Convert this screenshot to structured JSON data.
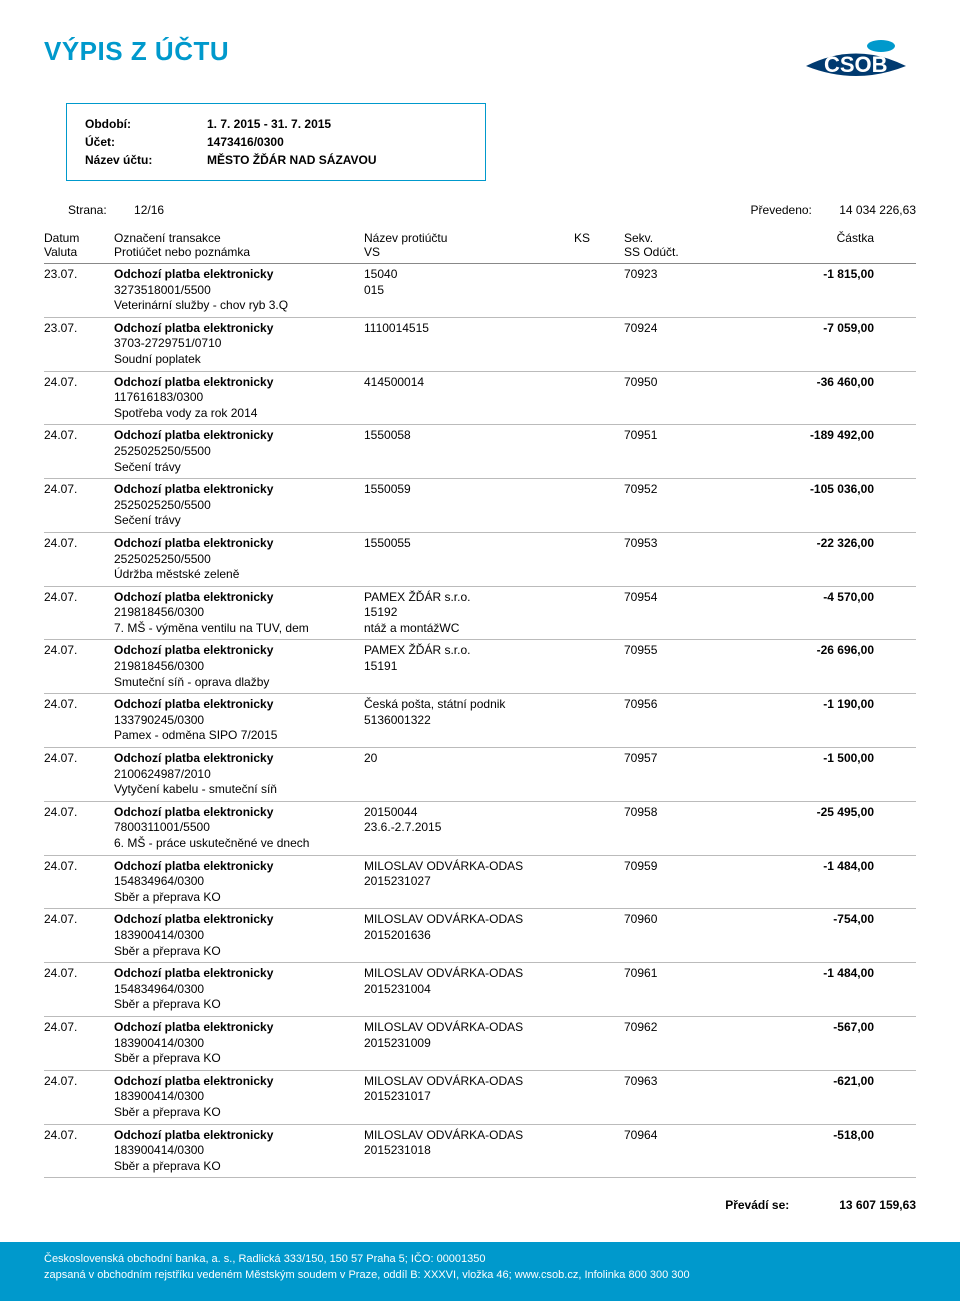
{
  "title": "VÝPIS Z ÚČTU",
  "account": {
    "period_label": "Období:",
    "period_value": "1. 7. 2015 - 31. 7. 2015",
    "acct_label": "Účet:",
    "acct_value": "1473416/0300",
    "name_label": "Název účtu:",
    "name_value": "MĚSTO ŽĎÁR NAD SÁZAVOU"
  },
  "topline": {
    "page_label": "Strana:",
    "page_value": "12/16",
    "carry_label": "Převedeno:",
    "carry_value": "14 034 226,63"
  },
  "cols": {
    "c1a": "Datum",
    "c1b": "Valuta",
    "c2a": "Označení transakce",
    "c2b": "Protiúčet nebo poznámka",
    "c3a": "Název protiúčtu",
    "c3b": "VS",
    "c4a": "",
    "c4b": "KS",
    "c5a": "Sekv.",
    "c5b": "SS  Odúčt.",
    "c6a": "Částka",
    "c6b": ""
  },
  "transactions": [
    {
      "date": "23.07.",
      "type": "Odchozí platba elektronicky",
      "acct": "3273518001/5500",
      "note": "Veterinární služby - chov ryb 3.Q",
      "name": "",
      "vs": "15040",
      "ks": "015",
      "seq": "70923",
      "amt": "-1 815,00"
    },
    {
      "date": "23.07.",
      "type": "Odchozí platba elektronicky",
      "acct": "3703-2729751/0710",
      "note": "Soudní poplatek",
      "name": "",
      "vs": "1110014515",
      "ks": "",
      "seq": "70924",
      "amt": "-7 059,00"
    },
    {
      "date": "24.07.",
      "type": "Odchozí platba elektronicky",
      "acct": "117616183/0300",
      "note": "Spotřeba vody za rok 2014",
      "name": "",
      "vs": "414500014",
      "ks": "",
      "seq": "70950",
      "amt": "-36 460,00"
    },
    {
      "date": "24.07.",
      "type": "Odchozí platba elektronicky",
      "acct": "2525025250/5500",
      "note": "Sečení trávy",
      "name": "",
      "vs": "1550058",
      "ks": "",
      "seq": "70951",
      "amt": "-189 492,00"
    },
    {
      "date": "24.07.",
      "type": "Odchozí platba elektronicky",
      "acct": "2525025250/5500",
      "note": "Sečení trávy",
      "name": "",
      "vs": "1550059",
      "ks": "",
      "seq": "70952",
      "amt": "-105 036,00"
    },
    {
      "date": "24.07.",
      "type": "Odchozí platba elektronicky",
      "acct": "2525025250/5500",
      "note": "Údržba městské zeleně",
      "name": "",
      "vs": "1550055",
      "ks": "",
      "seq": "70953",
      "amt": "-22 326,00"
    },
    {
      "date": "24.07.",
      "type": "Odchozí platba elektronicky",
      "acct": "219818456/0300",
      "note": "7. MŠ - výměna ventilu na TUV, dem",
      "name": "PAMEX ŽĎÁR s.r.o.",
      "vs": "15192",
      "ks": "ntáž a montážWC",
      "seq": "70954",
      "amt": "-4 570,00"
    },
    {
      "date": "24.07.",
      "type": "Odchozí platba elektronicky",
      "acct": "219818456/0300",
      "note": "Smuteční síň - oprava dlažby",
      "name": "PAMEX ŽĎÁR s.r.o.",
      "vs": "15191",
      "ks": "",
      "seq": "70955",
      "amt": "-26 696,00"
    },
    {
      "date": "24.07.",
      "type": "Odchozí platba elektronicky",
      "acct": "133790245/0300",
      "note": "Pamex - odměna SIPO 7/2015",
      "name": "Česká pošta, státní podnik",
      "vs": "5136001322",
      "ks": "",
      "seq": "70956",
      "amt": "-1 190,00"
    },
    {
      "date": "24.07.",
      "type": "Odchozí platba elektronicky",
      "acct": "2100624987/2010",
      "note": "Vytyčení kabelu - smuteční síň",
      "name": "",
      "vs": "20",
      "ks": "",
      "seq": "70957",
      "amt": "-1 500,00"
    },
    {
      "date": "24.07.",
      "type": "Odchozí platba elektronicky",
      "acct": "7800311001/5500",
      "note": "6. MŠ - práce uskutečněné ve dnech",
      "name": "",
      "vs": "20150044",
      "ks": "23.6.-2.7.2015",
      "seq": "70958",
      "amt": "-25 495,00"
    },
    {
      "date": "24.07.",
      "type": "Odchozí platba elektronicky",
      "acct": "154834964/0300",
      "note": "Sběr a přeprava KO",
      "name": "MILOSLAV ODVÁRKA-ODAS",
      "vs": "2015231027",
      "ks": "",
      "seq": "70959",
      "amt": "-1 484,00"
    },
    {
      "date": "24.07.",
      "type": "Odchozí platba elektronicky",
      "acct": "183900414/0300",
      "note": "Sběr a přeprava KO",
      "name": "MILOSLAV ODVÁRKA-ODAS",
      "vs": "2015201636",
      "ks": "",
      "seq": "70960",
      "amt": "-754,00"
    },
    {
      "date": "24.07.",
      "type": "Odchozí platba elektronicky",
      "acct": "154834964/0300",
      "note": "Sběr a přeprava KO",
      "name": "MILOSLAV ODVÁRKA-ODAS",
      "vs": "2015231004",
      "ks": "",
      "seq": "70961",
      "amt": "-1 484,00"
    },
    {
      "date": "24.07.",
      "type": "Odchozí platba elektronicky",
      "acct": "183900414/0300",
      "note": "Sběr a přeprava KO",
      "name": "MILOSLAV ODVÁRKA-ODAS",
      "vs": "2015231009",
      "ks": "",
      "seq": "70962",
      "amt": "-567,00"
    },
    {
      "date": "24.07.",
      "type": "Odchozí platba elektronicky",
      "acct": "183900414/0300",
      "note": "Sběr a přeprava KO",
      "name": "MILOSLAV ODVÁRKA-ODAS",
      "vs": "2015231017",
      "ks": "",
      "seq": "70963",
      "amt": "-621,00"
    },
    {
      "date": "24.07.",
      "type": "Odchozí platba elektronicky",
      "acct": "183900414/0300",
      "note": "Sběr a přeprava KO",
      "name": "MILOSLAV ODVÁRKA-ODAS",
      "vs": "2015231018",
      "ks": "",
      "seq": "70964",
      "amt": "-518,00"
    }
  ],
  "carry_out": {
    "label": "Převádí se:",
    "value": "13 607 159,63"
  },
  "footer": {
    "line1": "Československá obchodní banka, a. s., Radlická 333/150, 150 57 Praha 5; IČO: 00001350",
    "line2": "zapsaná v obchodním rejstříku vedeném Městským soudem v Praze, oddíl B: XXXVI, vložka 46; www.csob.cz, Infolinka 800 300 300"
  },
  "colors": {
    "brand": "#0099cc",
    "text": "#000000",
    "bg": "#ffffff"
  }
}
